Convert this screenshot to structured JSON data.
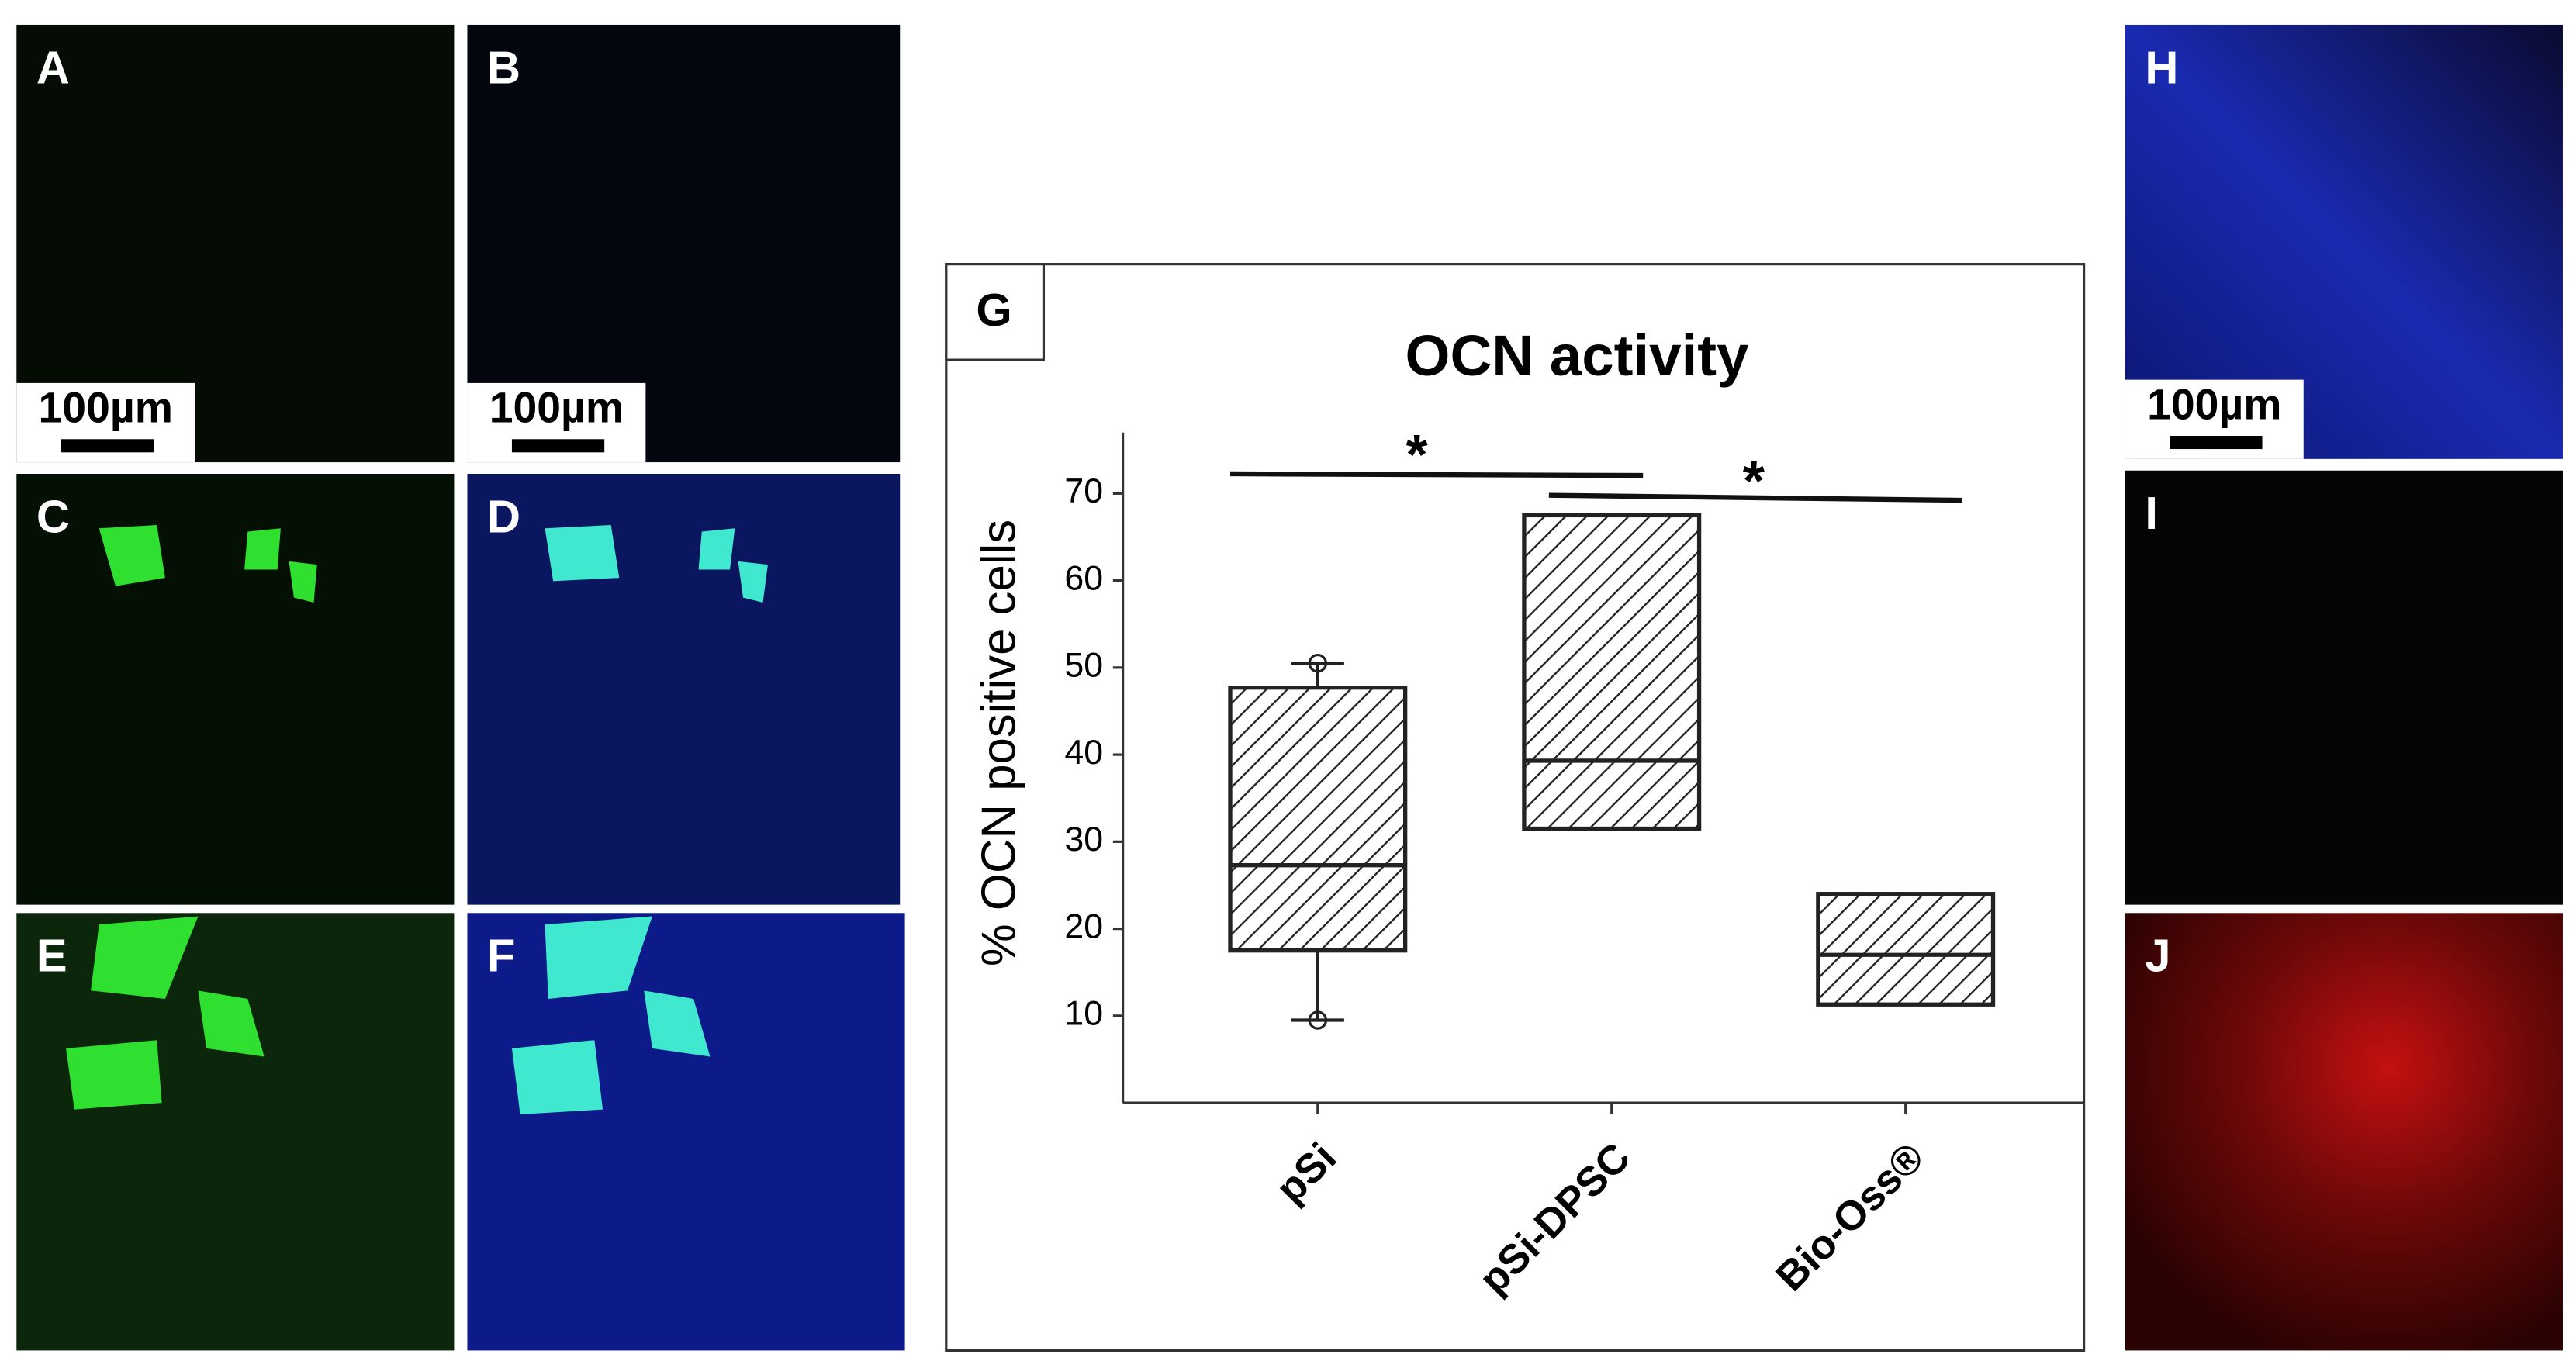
{
  "panels": [
    {
      "label": "A",
      "scale_bar": "100µm"
    },
    {
      "label": "B",
      "scale_bar": "100µm"
    },
    {
      "label": "C"
    },
    {
      "label": "D"
    },
    {
      "label": "E"
    },
    {
      "label": "F"
    },
    {
      "label": "H",
      "scale_bar": "100µm"
    },
    {
      "label": "I"
    },
    {
      "label": "J"
    }
  ],
  "chart_data": {
    "type": "box",
    "panel_label": "G",
    "title": "OCN activity",
    "y_label": "% OCN positive cells",
    "categories": [
      "pSi",
      "pSi-DPSC",
      "Bio-Oss®"
    ],
    "whisker_low": [
      9.5,
      null,
      null
    ],
    "q1": [
      17.5,
      31.5,
      11.3
    ],
    "median": [
      27.3,
      39.3,
      17.0
    ],
    "q3": [
      47.7,
      67.5,
      24.0
    ],
    "whisker_high": [
      50.5,
      null,
      null
    ],
    "ylim": [
      0,
      77
    ],
    "yticks": [
      10,
      20,
      30,
      40,
      50,
      60,
      70
    ],
    "annotations": [
      "*",
      "*"
    ],
    "color": "#222222"
  }
}
